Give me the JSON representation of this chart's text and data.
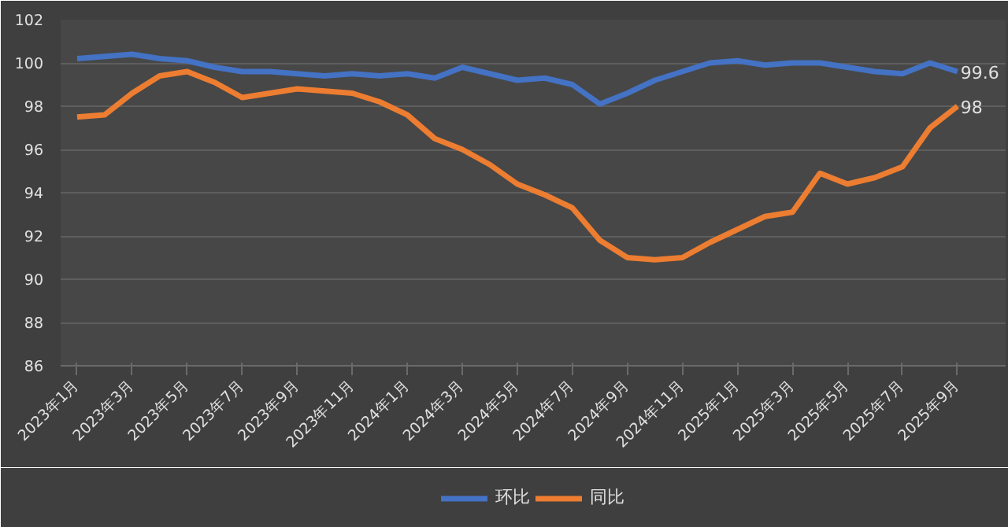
{
  "chart_data": {
    "type": "line",
    "categories": [
      "2023年1月",
      null,
      "2023年3月",
      null,
      "2023年5月",
      null,
      "2023年7月",
      null,
      "2023年9月",
      null,
      "2023年11月",
      null,
      "2024年1月",
      null,
      "2024年3月",
      null,
      "2024年5月",
      null,
      "2024年7月",
      null,
      "2024年9月",
      null,
      "2024年11月",
      null,
      "2025年1月",
      null,
      "2025年3月",
      null,
      "2025年5月",
      null,
      "2025年7月",
      null,
      "2025年9月"
    ],
    "series": [
      {
        "name": "环比",
        "color": "#4472c4",
        "values": [
          100.2,
          100.3,
          100.4,
          100.2,
          100.1,
          99.8,
          99.6,
          99.6,
          99.5,
          99.4,
          99.5,
          99.4,
          99.5,
          99.3,
          99.8,
          99.5,
          99.2,
          99.3,
          99.0,
          98.1,
          98.6,
          99.2,
          99.6,
          100.0,
          100.1,
          99.9,
          100.0,
          100.0,
          99.8,
          99.6,
          99.5,
          100.0,
          99.6
        ],
        "value_labels": [
          null,
          null,
          null,
          null,
          null,
          null,
          null,
          null,
          null,
          null,
          null,
          null,
          null,
          null,
          null,
          null,
          null,
          null,
          null,
          null,
          null,
          null,
          null,
          null,
          null,
          null,
          null,
          null,
          null,
          null,
          null,
          null,
          "99.6"
        ]
      },
      {
        "name": "同比",
        "color": "#ed7d31",
        "values": [
          97.5,
          97.6,
          98.6,
          99.4,
          99.6,
          99.1,
          98.4,
          98.6,
          98.8,
          98.7,
          98.6,
          98.2,
          97.6,
          96.5,
          96.0,
          95.3,
          94.4,
          93.9,
          93.3,
          91.8,
          91.0,
          90.9,
          91.0,
          91.7,
          92.3,
          92.9,
          93.1,
          94.9,
          94.4,
          94.7,
          95.2,
          97.0,
          98.0
        ],
        "value_labels": [
          null,
          null,
          null,
          null,
          null,
          null,
          null,
          null,
          null,
          null,
          null,
          null,
          null,
          null,
          null,
          null,
          null,
          null,
          null,
          null,
          null,
          null,
          null,
          null,
          null,
          null,
          null,
          null,
          null,
          null,
          null,
          null,
          "98"
        ]
      }
    ],
    "ylim": [
      86,
      102
    ],
    "yticks": [
      86,
      88,
      90,
      92,
      94,
      96,
      98,
      100,
      102
    ],
    "grid": "y",
    "legend": "bottom",
    "marker": "none",
    "line_style": "solid"
  }
}
